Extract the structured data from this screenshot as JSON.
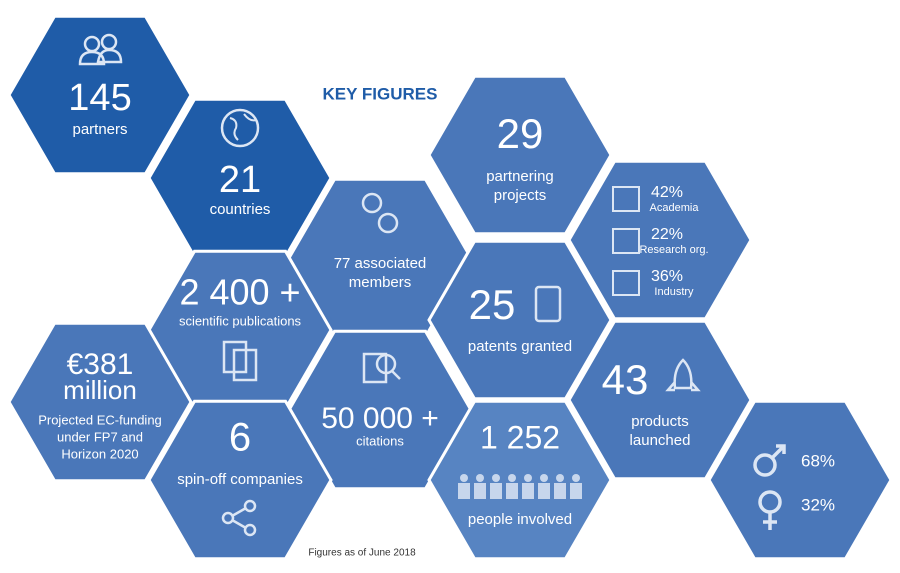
{
  "title": "KEY FIGURES",
  "footnote": "Figures as of June 2018",
  "hexes": [
    {
      "figure": "145",
      "label": [
        "partners"
      ]
    },
    {
      "figure": "21",
      "label": [
        "countries"
      ]
    },
    {
      "label": [
        "77 associated",
        "members"
      ]
    },
    {
      "figure": "29",
      "label": [
        "partnering",
        "projects"
      ]
    },
    {
      "items": [
        {
          "figure": "42%",
          "label": "Academia"
        },
        {
          "figure": "22%",
          "label": "Research org."
        },
        {
          "figure": "36%",
          "label": "Industry"
        }
      ]
    },
    {
      "figure": "2 400 +",
      "label": [
        "scientific publications"
      ]
    },
    {
      "figure": "25",
      "label": [
        "patents granted"
      ]
    },
    {
      "figure": "€381",
      "figure2": "million",
      "label": [
        "Projected EC-funding",
        "under FP7 and",
        "Horizon 2020"
      ]
    },
    {
      "figure": "50 000 +",
      "label": [
        "citations"
      ]
    },
    {
      "figure": "43",
      "label": [
        "products",
        "launched"
      ]
    },
    {
      "figure": "6",
      "label": [
        "spin-off companies"
      ]
    },
    {
      "figure": "1 252",
      "label": [
        "people involved"
      ]
    },
    {
      "items": [
        {
          "figure": "68%"
        },
        {
          "figure": "32%"
        }
      ]
    }
  ]
}
